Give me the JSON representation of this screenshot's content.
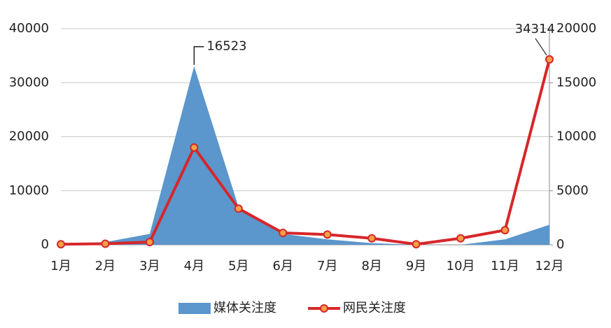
{
  "chart_data": {
    "type": "combo",
    "categories": [
      "1月",
      "2月",
      "3月",
      "4月",
      "5月",
      "6月",
      "7月",
      "8月",
      "9月",
      "10月",
      "11月",
      "12月"
    ],
    "series": [
      {
        "name": "媒体关注度",
        "type": "area",
        "axis": "y2",
        "color": "#5b96cc",
        "values": [
          0,
          250,
          1000,
          16523,
          3500,
          1000,
          500,
          150,
          0,
          0,
          500,
          1850
        ],
        "label_points": [
          3
        ]
      },
      {
        "name": "网民关注度",
        "type": "line",
        "axis": "y",
        "color": "#d7262a",
        "marker_color": "#f5a043",
        "values": [
          100,
          200,
          500,
          18000,
          6700,
          2200,
          1900,
          1200,
          100,
          1200,
          2700,
          34314
        ],
        "label_points": [
          11
        ]
      }
    ],
    "ylim": [
      0,
      40000
    ],
    "yticks": [
      0,
      10000,
      20000,
      30000,
      40000
    ],
    "y2lim": [
      0,
      20000
    ],
    "y2ticks": [
      0,
      5000,
      10000,
      15000,
      20000
    ],
    "grid": true
  }
}
